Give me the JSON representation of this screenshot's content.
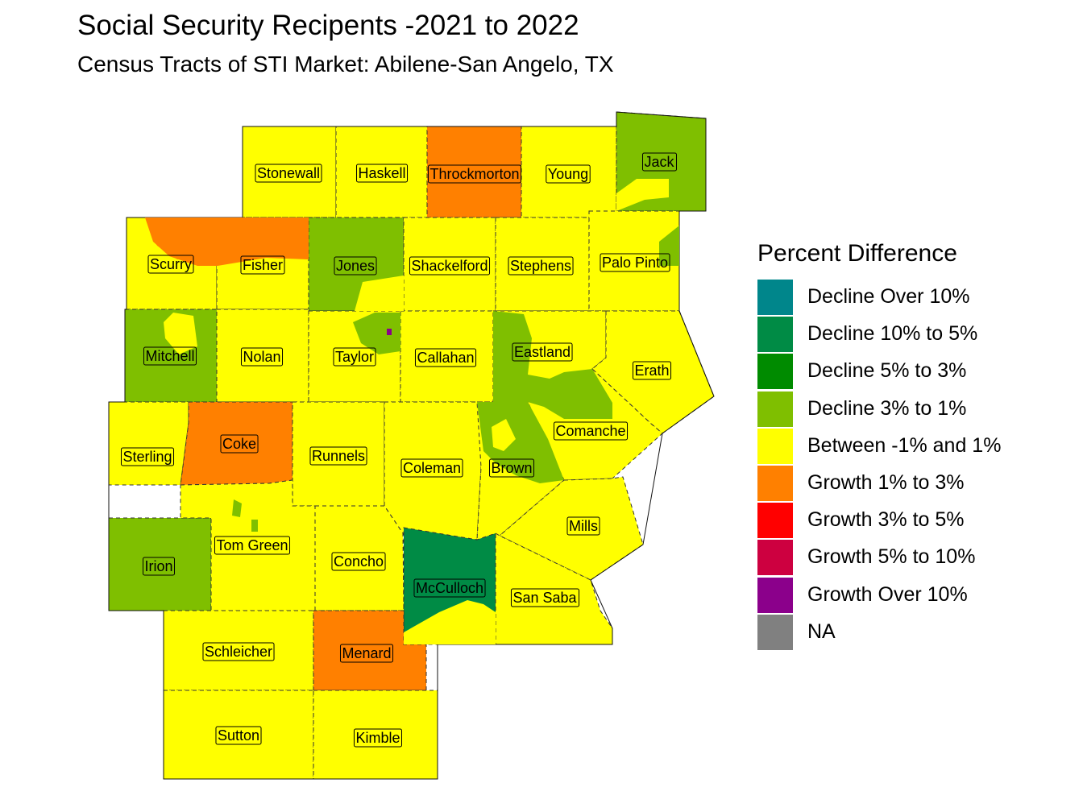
{
  "title": "Social Security Recipents -2021 to 2022",
  "subtitle": "Census Tracts of STI Market: Abilene-San Angelo, TX",
  "legend": {
    "title": "Percent Difference",
    "items": [
      {
        "label": "Decline Over 10%",
        "color": "#00868B"
      },
      {
        "label": "Decline 10% to 5%",
        "color": "#008B45"
      },
      {
        "label": "Decline 5% to 3%",
        "color": "#008B00"
      },
      {
        "label": "Decline 3% to 1%",
        "color": "#7FBF00"
      },
      {
        "label": "Between -1% and 1%",
        "color": "#FFFF00"
      },
      {
        "label": "Growth 1% to 3%",
        "color": "#FF8000"
      },
      {
        "label": "Growth 3% to 5%",
        "color": "#FF0000"
      },
      {
        "label": "Growth 5% to 10%",
        "color": "#CD0040"
      },
      {
        "label": "Growth Over 10%",
        "color": "#8B008B"
      },
      {
        "label": "NA",
        "color": "#808080"
      }
    ]
  },
  "counties": [
    {
      "name": "Stonewall",
      "category": "Between -1% and 1%"
    },
    {
      "name": "Haskell",
      "category": "Between -1% and 1%"
    },
    {
      "name": "Throckmorton",
      "category": "Growth 1% to 3%"
    },
    {
      "name": "Young",
      "category": "Between -1% and 1%"
    },
    {
      "name": "Jack",
      "category": "Decline 3% to 1%"
    },
    {
      "name": "Scurry",
      "category": "Between -1% and 1%"
    },
    {
      "name": "Fisher",
      "category": "Between -1% and 1%"
    },
    {
      "name": "Jones",
      "category": "Decline 3% to 1%"
    },
    {
      "name": "Shackelford",
      "category": "Between -1% and 1%"
    },
    {
      "name": "Stephens",
      "category": "Between -1% and 1%"
    },
    {
      "name": "Palo Pinto",
      "category": "Between -1% and 1%"
    },
    {
      "name": "Mitchell",
      "category": "Decline 3% to 1%"
    },
    {
      "name": "Nolan",
      "category": "Between -1% and 1%"
    },
    {
      "name": "Taylor",
      "category": "Between -1% and 1%"
    },
    {
      "name": "Callahan",
      "category": "Between -1% and 1%"
    },
    {
      "name": "Eastland",
      "category": "Between -1% and 1%"
    },
    {
      "name": "Erath",
      "category": "Between -1% and 1%"
    },
    {
      "name": "Sterling",
      "category": "Between -1% and 1%"
    },
    {
      "name": "Coke",
      "category": "Growth 1% to 3%"
    },
    {
      "name": "Runnels",
      "category": "Between -1% and 1%"
    },
    {
      "name": "Coleman",
      "category": "Between -1% and 1%"
    },
    {
      "name": "Brown",
      "category": "Between -1% and 1%"
    },
    {
      "name": "Comanche",
      "category": "Between -1% and 1%"
    },
    {
      "name": "Mills",
      "category": "Between -1% and 1%"
    },
    {
      "name": "Irion",
      "category": "Decline 3% to 1%"
    },
    {
      "name": "Tom Green",
      "category": "Between -1% and 1%"
    },
    {
      "name": "Concho",
      "category": "Between -1% and 1%"
    },
    {
      "name": "McCulloch",
      "category": "Decline 10% to 5%"
    },
    {
      "name": "San Saba",
      "category": "Between -1% and 1%"
    },
    {
      "name": "Schleicher",
      "category": "Between -1% and 1%"
    },
    {
      "name": "Menard",
      "category": "Growth 1% to 3%"
    },
    {
      "name": "Sutton",
      "category": "Between -1% and 1%"
    },
    {
      "name": "Kimble",
      "category": "Between -1% and 1%"
    }
  ]
}
